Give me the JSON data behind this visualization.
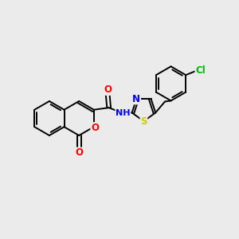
{
  "background_color": "#ebebeb",
  "bond_color": "#000000",
  "bond_width": 1.4,
  "atom_colors": {
    "O": "#ff0000",
    "N": "#0000ff",
    "S": "#cccc00",
    "Cl": "#00bb00",
    "C": "#000000",
    "H": "#000000"
  },
  "fig_width": 3.0,
  "fig_height": 3.0,
  "dpi": 100,
  "xlim": [
    0,
    10
  ],
  "ylim": [
    0,
    10
  ]
}
